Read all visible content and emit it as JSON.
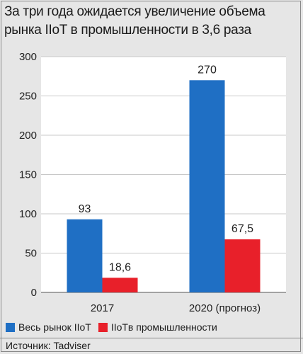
{
  "title": "За три года ожидается увеличение объема рынка IIoT в промышленности в 3,6 раза",
  "source": "Источник: Tadviser",
  "chart_data": {
    "type": "bar",
    "categories": [
      "2017",
      "2020 (прогноз)"
    ],
    "series": [
      {
        "name": "Весь рынок IIoT",
        "values": [
          93,
          270
        ],
        "labels": [
          "93",
          "270"
        ],
        "color": "#1f6fc4"
      },
      {
        "name": "IIoTв промышленности",
        "values": [
          18.6,
          67.5
        ],
        "labels": [
          "18,6",
          "67,5"
        ],
        "color": "#e8202a"
      }
    ],
    "ylim": [
      0,
      300
    ],
    "yticks": [
      0,
      50,
      100,
      150,
      200,
      250,
      300
    ],
    "grid": true,
    "legend": "bottom-left",
    "title": "",
    "xlabel": "",
    "ylabel": ""
  }
}
